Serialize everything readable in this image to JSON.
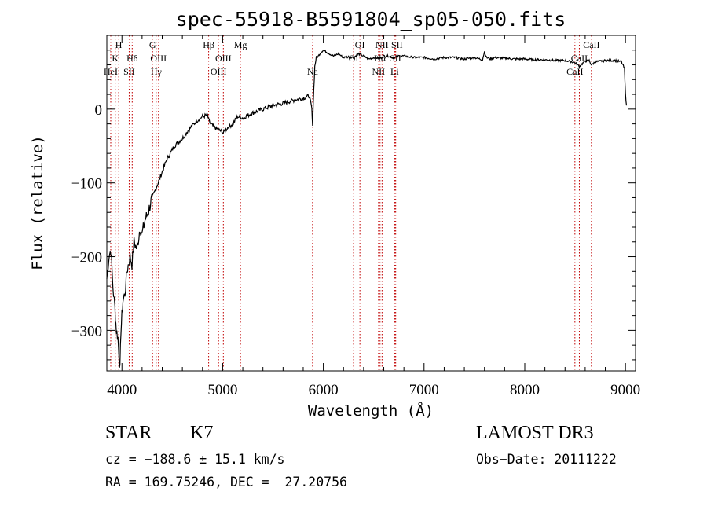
{
  "chart_data": {
    "type": "line",
    "title": "spec-55918-B5591804_sp05-050.fits",
    "xlabel": "Wavelength (Å)",
    "ylabel": "Flux (relative)",
    "xlim": [
      3850,
      9100
    ],
    "ylim": [
      -355,
      100
    ],
    "xticks": [
      4000,
      5000,
      6000,
      7000,
      8000,
      9000
    ],
    "yticks": [
      -300,
      -200,
      -100,
      0
    ],
    "series": [
      {
        "name": "spectrum",
        "x": [
          3850,
          3870,
          3890,
          3910,
          3930,
          3945,
          3960,
          3970,
          3980,
          3990,
          4000,
          4010,
          4030,
          4050,
          4080,
          4100,
          4120,
          4150,
          4180,
          4200,
          4230,
          4260,
          4300,
          4330,
          4360,
          4400,
          4440,
          4480,
          4520,
          4560,
          4600,
          4650,
          4700,
          4750,
          4800,
          4850,
          4861,
          4880,
          4920,
          4960,
          5007,
          5050,
          5100,
          5150,
          5200,
          5300,
          5400,
          5500,
          5600,
          5700,
          5800,
          5860,
          5885,
          5893,
          5900,
          5915,
          5930,
          5950,
          5980,
          6000,
          6050,
          6100,
          6150,
          6200,
          6250,
          6300,
          6350,
          6400,
          6450,
          6500,
          6563,
          6600,
          6650,
          6700,
          6750,
          6800,
          6900,
          7000,
          7100,
          7200,
          7300,
          7400,
          7500,
          7580,
          7600,
          7620,
          7660,
          7700,
          7800,
          7900,
          8000,
          8100,
          8200,
          8300,
          8400,
          8500,
          8542,
          8600,
          8640,
          8662,
          8700,
          8800,
          8900,
          8960,
          8990,
          9000,
          9010
        ],
        "y": [
          -230,
          -200,
          -190,
          -240,
          -270,
          -300,
          -310,
          -330,
          -355,
          -300,
          -280,
          -260,
          -250,
          -220,
          -200,
          -210,
          -180,
          -190,
          -160,
          -170,
          -150,
          -140,
          -120,
          -110,
          -100,
          -85,
          -70,
          -60,
          -50,
          -45,
          -40,
          -30,
          -22,
          -15,
          -10,
          -8,
          -15,
          -20,
          -25,
          -28,
          -32,
          -25,
          -20,
          -10,
          -12,
          -5,
          0,
          5,
          8,
          12,
          15,
          18,
          0,
          -25,
          10,
          58,
          70,
          72,
          78,
          80,
          76,
          72,
          75,
          70,
          71,
          70,
          75,
          72,
          68,
          70,
          69,
          72,
          72,
          70,
          72,
          72,
          70,
          70,
          68,
          70,
          70,
          68,
          70,
          67,
          78,
          70,
          68,
          70,
          69,
          68,
          68,
          67,
          67,
          66,
          66,
          63,
          58,
          65,
          66,
          60,
          64,
          66,
          66,
          64,
          55,
          20,
          5
        ]
      }
    ],
    "lines": [
      {
        "wl": 3889,
        "label": "HeI",
        "row": 3
      },
      {
        "wl": 3934,
        "label": "K",
        "row": 2
      },
      {
        "wl": 3968,
        "label": "H",
        "row": 1
      },
      {
        "wl": 4072,
        "label": "SII",
        "row": 3
      },
      {
        "wl": 4102,
        "label": "Hδ",
        "row": 2
      },
      {
        "wl": 4304,
        "label": "G",
        "row": 1
      },
      {
        "wl": 4340,
        "label": "Hγ",
        "row": 3
      },
      {
        "wl": 4363,
        "label": "OIII",
        "row": 2
      },
      {
        "wl": 4861,
        "label": "Hβ",
        "row": 1
      },
      {
        "wl": 4959,
        "label": "OIII",
        "row": 3
      },
      {
        "wl": 5007,
        "label": "OIII",
        "row": 2
      },
      {
        "wl": 5177,
        "label": "Mg",
        "row": 1
      },
      {
        "wl": 5893,
        "label": "Na",
        "row": 3
      },
      {
        "wl": 6300,
        "label": "OI",
        "row": 2
      },
      {
        "wl": 6363,
        "label": "OI",
        "row": 1
      },
      {
        "wl": 6548,
        "label": "NII",
        "row": 3
      },
      {
        "wl": 6563,
        "label": "Hα",
        "row": 2
      },
      {
        "wl": 6583,
        "label": "NII",
        "row": 1
      },
      {
        "wl": 6708,
        "label": "Li",
        "row": 3
      },
      {
        "wl": 6716,
        "label": "SII",
        "row": 2
      },
      {
        "wl": 6731,
        "label": "SII",
        "row": 1
      },
      {
        "wl": 8498,
        "label": "CaII",
        "row": 3
      },
      {
        "wl": 8542,
        "label": "CaII",
        "row": 2
      },
      {
        "wl": 8662,
        "label": "CaII",
        "row": 1
      }
    ]
  },
  "info": {
    "class": "STAR",
    "subclass": "K7",
    "survey": "LAMOST DR3",
    "cz": "cz = −188.6 ± 15.1 km/s",
    "obs_date": "Obs−Date: 20111222",
    "coords": "RA = 169.75246, DEC =  27.20756"
  },
  "colors": {
    "line_marker": "#c00000",
    "spectrum": "#000000"
  }
}
